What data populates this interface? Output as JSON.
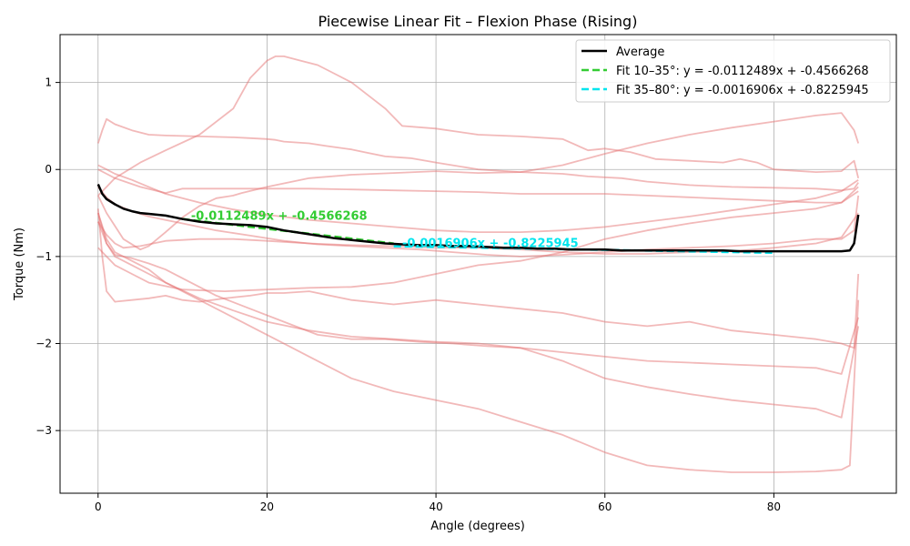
{
  "chart_data": {
    "type": "line",
    "title": "Piecewise Linear Fit – Flexion Phase (Rising)",
    "xlabel": "Angle (degrees)",
    "ylabel": "Torque (Nm)",
    "xlim": [
      -4.5,
      94.5
    ],
    "ylim": [
      -3.72,
      1.55
    ],
    "xticks": [
      0,
      20,
      40,
      60,
      80
    ],
    "yticks": [
      -3,
      -2,
      -1,
      0,
      1
    ],
    "grid": true,
    "legend_position": "top-right",
    "trial_color": "#e57373",
    "trials": [
      {
        "x": [
          0,
          0.5,
          1,
          2,
          4,
          6,
          8,
          12,
          16,
          18,
          20,
          21,
          22,
          25,
          27,
          30,
          32,
          34,
          37,
          40,
          45,
          50,
          55,
          58,
          62,
          65,
          70,
          75,
          80,
          85,
          88,
          89.5,
          90
        ],
        "y": [
          0.3,
          0.45,
          0.58,
          0.52,
          0.45,
          0.4,
          0.39,
          0.38,
          0.37,
          0.36,
          0.35,
          0.34,
          0.32,
          0.3,
          0.27,
          0.23,
          0.19,
          0.15,
          0.13,
          0.08,
          0.0,
          -0.03,
          -0.05,
          -0.08,
          -0.1,
          -0.14,
          -0.18,
          -0.2,
          -0.21,
          -0.22,
          -0.24,
          -0.22,
          -0.15
        ]
      },
      {
        "x": [
          0,
          1,
          2,
          4,
          6,
          8,
          12,
          16,
          20,
          25,
          30,
          35,
          40,
          45,
          50,
          55,
          60,
          65,
          70,
          75,
          80,
          85,
          88,
          90
        ],
        "y": [
          0.05,
          0.0,
          -0.05,
          -0.12,
          -0.2,
          -0.28,
          -0.38,
          -0.46,
          -0.52,
          -0.58,
          -0.62,
          -0.66,
          -0.7,
          -0.72,
          -0.72,
          -0.7,
          -0.66,
          -0.6,
          -0.54,
          -0.47,
          -0.4,
          -0.33,
          -0.25,
          -0.12
        ]
      },
      {
        "x": [
          0,
          1,
          2,
          5,
          8,
          12,
          16,
          18,
          20,
          21,
          22,
          24,
          26,
          28,
          30,
          34,
          36,
          40,
          45,
          50,
          55,
          58,
          60,
          63,
          66,
          70,
          74,
          76,
          78,
          80,
          85,
          88,
          89.5,
          90
        ],
        "y": [
          -0.3,
          -0.2,
          -0.1,
          0.08,
          0.22,
          0.4,
          0.7,
          1.05,
          1.25,
          1.3,
          1.3,
          1.25,
          1.2,
          1.1,
          1.0,
          0.7,
          0.5,
          0.47,
          0.4,
          0.38,
          0.35,
          0.22,
          0.24,
          0.2,
          0.12,
          0.1,
          0.08,
          0.12,
          0.08,
          0.0,
          -0.03,
          -0.02,
          0.1,
          -0.1
        ]
      },
      {
        "x": [
          0,
          1,
          3,
          5,
          6,
          8,
          10,
          12,
          14,
          16,
          17,
          20,
          25,
          30,
          35,
          40,
          45,
          50,
          55,
          60,
          65,
          70,
          75,
          80,
          85,
          88,
          89.5,
          90
        ],
        "y": [
          -0.3,
          -0.5,
          -0.8,
          -0.92,
          -0.88,
          -0.72,
          -0.55,
          -0.42,
          -0.33,
          -0.3,
          -0.27,
          -0.2,
          -0.1,
          -0.06,
          -0.04,
          -0.02,
          -0.04,
          -0.03,
          0.05,
          0.18,
          0.3,
          0.4,
          0.48,
          0.55,
          0.62,
          0.65,
          0.45,
          0.3
        ]
      },
      {
        "x": [
          0,
          1,
          2,
          5,
          8,
          10,
          15,
          20,
          25,
          30,
          35,
          40,
          45,
          50,
          55,
          60,
          65,
          70,
          75,
          80,
          85,
          88,
          90
        ],
        "y": [
          0.0,
          -0.05,
          -0.1,
          -0.2,
          -0.27,
          -0.22,
          -0.22,
          -0.22,
          -0.22,
          -0.23,
          -0.24,
          -0.25,
          -0.26,
          -0.28,
          -0.28,
          -0.28,
          -0.3,
          -0.32,
          -0.34,
          -0.36,
          -0.38,
          -0.38,
          -0.25
        ]
      },
      {
        "x": [
          0,
          1,
          2,
          4,
          6,
          8,
          10,
          14,
          18,
          22,
          26,
          30,
          34,
          38,
          42,
          46,
          50,
          55,
          60,
          65,
          70,
          75,
          80,
          85,
          88,
          89.5,
          90
        ],
        "y": [
          -0.2,
          -0.32,
          -0.4,
          -0.48,
          -0.54,
          -0.58,
          -0.62,
          -0.7,
          -0.76,
          -0.82,
          -0.86,
          -0.88,
          -0.9,
          -0.92,
          -0.95,
          -0.98,
          -1.0,
          -0.98,
          -0.95,
          -0.92,
          -0.9,
          -0.88,
          -0.85,
          -0.8,
          -0.8,
          -0.7,
          -0.3
        ]
      },
      {
        "x": [
          0,
          1,
          2,
          4,
          6,
          10,
          15,
          20,
          25,
          30,
          35,
          40,
          45,
          50,
          55,
          60,
          65,
          70,
          75,
          80,
          85,
          88,
          90
        ],
        "y": [
          -0.9,
          -1.0,
          -1.1,
          -1.2,
          -1.3,
          -1.38,
          -1.4,
          -1.38,
          -1.36,
          -1.35,
          -1.3,
          -1.2,
          -1.1,
          -1.05,
          -0.95,
          -0.8,
          -0.7,
          -0.62,
          -0.55,
          -0.5,
          -0.45,
          -0.38,
          -0.2
        ]
      },
      {
        "x": [
          0,
          1,
          2,
          4,
          6,
          8,
          10,
          14,
          18,
          22,
          26,
          30,
          34,
          38,
          42,
          46,
          50,
          55,
          60,
          65,
          70,
          75,
          80,
          85,
          88,
          90
        ],
        "y": [
          -0.6,
          -0.85,
          -0.98,
          -1.02,
          -1.08,
          -1.15,
          -1.25,
          -1.45,
          -1.6,
          -1.75,
          -1.9,
          -1.95,
          -1.95,
          -1.98,
          -2.0,
          -2.03,
          -2.05,
          -2.1,
          -2.15,
          -2.2,
          -2.22,
          -2.24,
          -2.26,
          -2.28,
          -2.35,
          -1.7
        ]
      },
      {
        "x": [
          0,
          0.5,
          1,
          2,
          4,
          6,
          8,
          10,
          12,
          15,
          18,
          20,
          22,
          25,
          30,
          35,
          40,
          45,
          50,
          55,
          60,
          65,
          70,
          75,
          80,
          85,
          88,
          89.5,
          90
        ],
        "y": [
          -0.45,
          -1.0,
          -1.4,
          -1.52,
          -1.5,
          -1.48,
          -1.45,
          -1.5,
          -1.52,
          -1.48,
          -1.45,
          -1.42,
          -1.42,
          -1.4,
          -1.5,
          -1.55,
          -1.5,
          -1.55,
          -1.6,
          -1.65,
          -1.75,
          -1.8,
          -1.75,
          -1.85,
          -1.9,
          -1.95,
          -2.0,
          -2.05,
          -1.2
        ]
      },
      {
        "x": [
          0,
          1,
          2,
          4,
          6,
          8,
          12,
          16,
          20,
          25,
          30,
          35,
          40,
          45,
          50,
          55,
          60,
          65,
          70,
          75,
          80,
          85,
          88,
          89,
          90
        ],
        "y": [
          -0.5,
          -0.8,
          -0.95,
          -1.05,
          -1.15,
          -1.3,
          -1.5,
          -1.7,
          -1.9,
          -2.15,
          -2.4,
          -2.55,
          -2.65,
          -2.75,
          -2.9,
          -3.05,
          -3.25,
          -3.4,
          -3.45,
          -3.48,
          -3.48,
          -3.47,
          -3.45,
          -3.4,
          -1.5
        ]
      },
      {
        "x": [
          0,
          1,
          2,
          4,
          6,
          8,
          12,
          16,
          20,
          25,
          30,
          35,
          40,
          45,
          50,
          55,
          60,
          65,
          70,
          75,
          80,
          85,
          88,
          90
        ],
        "y": [
          -0.5,
          -0.85,
          -1.0,
          -1.1,
          -1.2,
          -1.3,
          -1.48,
          -1.62,
          -1.75,
          -1.85,
          -1.92,
          -1.95,
          -1.98,
          -2.0,
          -2.05,
          -2.2,
          -2.4,
          -2.5,
          -2.58,
          -2.65,
          -2.7,
          -2.75,
          -2.85,
          -1.8
        ]
      },
      {
        "x": [
          0,
          1,
          2,
          3,
          5,
          8,
          12,
          16,
          20,
          25,
          30,
          35,
          40,
          45,
          50,
          55,
          60,
          65,
          70,
          75,
          80,
          85,
          88,
          90
        ],
        "y": [
          -0.6,
          -0.75,
          -0.85,
          -0.9,
          -0.88,
          -0.82,
          -0.8,
          -0.8,
          -0.82,
          -0.85,
          -0.87,
          -0.88,
          -0.9,
          -0.9,
          -0.92,
          -0.95,
          -0.97,
          -0.97,
          -0.95,
          -0.94,
          -0.9,
          -0.85,
          -0.78,
          -0.5
        ]
      }
    ],
    "average": {
      "name": "Average",
      "color": "#000000",
      "x": [
        0,
        0.5,
        1,
        2,
        3,
        4,
        5,
        6,
        8,
        10,
        12,
        14,
        16,
        18,
        20,
        22,
        24,
        26,
        28,
        30,
        32,
        34,
        36,
        38,
        40,
        42,
        44,
        46,
        48,
        50,
        52,
        54,
        56,
        58,
        60,
        62,
        64,
        66,
        68,
        70,
        72,
        74,
        76,
        78,
        80,
        82,
        84,
        86,
        88,
        89,
        89.5,
        90
      ],
      "y": [
        -0.17,
        -0.28,
        -0.34,
        -0.4,
        -0.45,
        -0.48,
        -0.5,
        -0.51,
        -0.53,
        -0.57,
        -0.6,
        -0.62,
        -0.63,
        -0.64,
        -0.66,
        -0.7,
        -0.73,
        -0.76,
        -0.79,
        -0.81,
        -0.83,
        -0.85,
        -0.86,
        -0.87,
        -0.87,
        -0.88,
        -0.88,
        -0.89,
        -0.9,
        -0.9,
        -0.91,
        -0.91,
        -0.92,
        -0.92,
        -0.92,
        -0.93,
        -0.93,
        -0.93,
        -0.93,
        -0.93,
        -0.93,
        -0.93,
        -0.94,
        -0.94,
        -0.94,
        -0.94,
        -0.94,
        -0.94,
        -0.94,
        -0.93,
        -0.85,
        -0.52
      ]
    },
    "fits": [
      {
        "name": "Fit 10–35°: y = -0.0112489x + -0.4566268",
        "color": "#33cc33",
        "slope": -0.0112489,
        "intercept": -0.4566268,
        "x_range": [
          10,
          35
        ],
        "annotation": "-0.0112489x + -0.4566268",
        "annotation_x": 11,
        "annotation_y": -0.58
      },
      {
        "name": "Fit 35–80°: y = -0.0016906x + -0.8225945",
        "color": "#00e5ee",
        "slope": -0.0016906,
        "intercept": -0.8225945,
        "x_range": [
          35,
          80
        ],
        "annotation": "-0.0016906x + -0.8225945",
        "annotation_x": 36,
        "annotation_y": -0.89
      }
    ]
  }
}
